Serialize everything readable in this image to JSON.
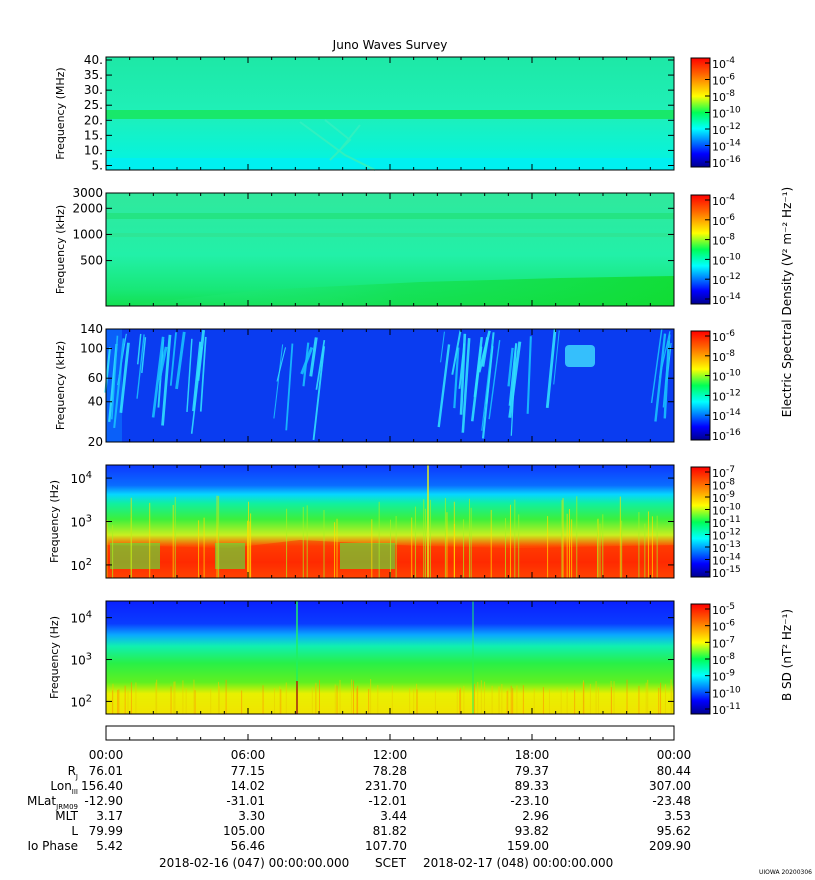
{
  "title": "Juno Waves Survey",
  "footer": {
    "start": "2018-02-16 (047) 00:00:00.000",
    "scet": "SCET",
    "end": "2018-02-17 (048) 00:00:00.000",
    "stamp": "UIOWA 20200306"
  },
  "chart_data": [
    {
      "type": "heatmap",
      "name": "panel-1",
      "ylabel": "Frequency (MHz)",
      "yscale": "linear",
      "ylim": [
        3.5,
        41
      ],
      "yticks": [
        {
          "v": 5,
          "t": "5."
        },
        {
          "v": 10,
          "t": "10."
        },
        {
          "v": 15,
          "t": "15."
        },
        {
          "v": 20,
          "t": "20."
        },
        {
          "v": 25,
          "t": "25."
        },
        {
          "v": 30,
          "t": "30."
        },
        {
          "v": 35,
          "t": "35."
        },
        {
          "v": 40,
          "t": "40."
        }
      ],
      "colorbar": {
        "ticks": [
          {
            "m": "10",
            "e": "-4"
          },
          {
            "m": "10",
            "e": "-6"
          },
          {
            "m": "10",
            "e": "-8"
          },
          {
            "m": "10",
            "e": "-10"
          },
          {
            "m": "10",
            "e": "-12"
          },
          {
            "m": "10",
            "e": "-14"
          },
          {
            "m": "10",
            "e": "-16"
          }
        ]
      }
    },
    {
      "type": "heatmap",
      "name": "panel-2",
      "ylabel": "Frequency (kHz)",
      "yscale": "log",
      "ylim": [
        150,
        3000
      ],
      "yticks": [
        {
          "v": 500,
          "t": "500"
        },
        {
          "v": 1000,
          "t": "1000"
        },
        {
          "v": 2000,
          "t": "2000"
        },
        {
          "v": 3000,
          "t": "3000"
        }
      ],
      "colorbar": {
        "ticks": [
          {
            "m": "10",
            "e": "-4"
          },
          {
            "m": "10",
            "e": "-6"
          },
          {
            "m": "10",
            "e": "-8"
          },
          {
            "m": "10",
            "e": "-10"
          },
          {
            "m": "10",
            "e": "-12"
          },
          {
            "m": "10",
            "e": "-14"
          }
        ]
      }
    },
    {
      "type": "heatmap",
      "name": "panel-3",
      "ylabel": "Frequency (kHz)",
      "yscale": "log",
      "ylim": [
        20,
        140
      ],
      "yticks": [
        {
          "v": 20,
          "t": "20"
        },
        {
          "v": 40,
          "t": "40"
        },
        {
          "v": 60,
          "t": "60"
        },
        {
          "v": 100,
          "t": "100"
        },
        {
          "v": 140,
          "t": "140"
        }
      ],
      "colorbar": {
        "ticks": [
          {
            "m": "10",
            "e": "-6"
          },
          {
            "m": "10",
            "e": "-8"
          },
          {
            "m": "10",
            "e": "-10"
          },
          {
            "m": "10",
            "e": "-12"
          },
          {
            "m": "10",
            "e": "-14"
          },
          {
            "m": "10",
            "e": "-16"
          }
        ]
      }
    },
    {
      "type": "heatmap",
      "name": "panel-4",
      "ylabel": "Frequency (Hz)",
      "yscale": "log",
      "ylim": [
        50,
        20000
      ],
      "yticks": [
        {
          "v": 100,
          "m": "10",
          "e": "2"
        },
        {
          "v": 1000,
          "m": "10",
          "e": "3"
        },
        {
          "v": 10000,
          "m": "10",
          "e": "4"
        }
      ],
      "colorbar": {
        "ticks": [
          {
            "m": "10",
            "e": "-7"
          },
          {
            "m": "10",
            "e": "-8"
          },
          {
            "m": "10",
            "e": "-9"
          },
          {
            "m": "10",
            "e": "-10"
          },
          {
            "m": "10",
            "e": "-11"
          },
          {
            "m": "10",
            "e": "-12"
          },
          {
            "m": "10",
            "e": "-13"
          },
          {
            "m": "10",
            "e": "-14"
          },
          {
            "m": "10",
            "e": "-15"
          }
        ]
      }
    },
    {
      "type": "heatmap",
      "name": "panel-5",
      "ylabel": "Frequency (Hz)",
      "yscale": "log",
      "ylim": [
        50,
        25000
      ],
      "yticks": [
        {
          "v": 100,
          "m": "10",
          "e": "2"
        },
        {
          "v": 1000,
          "m": "10",
          "e": "3"
        },
        {
          "v": 10000,
          "m": "10",
          "e": "4"
        }
      ],
      "colorbar": {
        "ticks": [
          {
            "m": "10",
            "e": "-5"
          },
          {
            "m": "10",
            "e": "-6"
          },
          {
            "m": "10",
            "e": "-7"
          },
          {
            "m": "10",
            "e": "-8"
          },
          {
            "m": "10",
            "e": "-9"
          },
          {
            "m": "10",
            "e": "-10"
          },
          {
            "m": "10",
            "e": "-11"
          }
        ]
      }
    }
  ],
  "colorbar_labels": {
    "electric": "Electric Spectral Density (V² m⁻² Hz⁻¹)",
    "magnetic": "B SD (nT² Hz⁻¹)"
  },
  "time_axis": [
    "00:00",
    "06:00",
    "12:00",
    "18:00",
    "00:00"
  ],
  "ephemeris": [
    {
      "label": "R",
      "sub": "J",
      "values": [
        "76.01",
        "77.15",
        "78.28",
        "79.37",
        "80.44"
      ]
    },
    {
      "label": "Lon",
      "sub": "III",
      "values": [
        "156.40",
        "14.02",
        "231.70",
        "89.33",
        "307.00"
      ]
    },
    {
      "label": "MLat",
      "sub": "JRM09",
      "values": [
        "-12.90",
        "-31.01",
        "-12.01",
        "-23.10",
        "-23.48"
      ]
    },
    {
      "label": "MLT",
      "sub": "",
      "values": [
        "3.17",
        "3.30",
        "3.44",
        "2.96",
        "3.53"
      ]
    },
    {
      "label": "L",
      "sub": "",
      "values": [
        "79.99",
        "105.00",
        "81.82",
        "93.82",
        "95.62"
      ]
    },
    {
      "label": "Io Phase",
      "sub": "",
      "values": [
        "5.42",
        "56.46",
        "107.70",
        "159.00",
        "209.90"
      ]
    }
  ]
}
